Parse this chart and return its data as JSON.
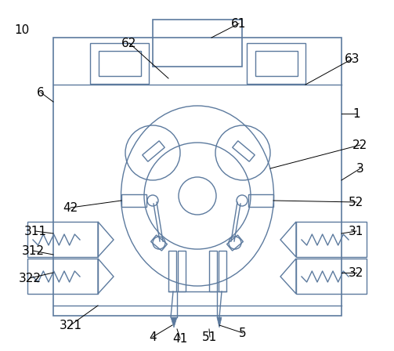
{
  "bg_color": "#ffffff",
  "line_color": "#5c7a9e",
  "label_color": "#000000",
  "fig_width": 5.03,
  "fig_height": 4.48,
  "dpi": 100
}
